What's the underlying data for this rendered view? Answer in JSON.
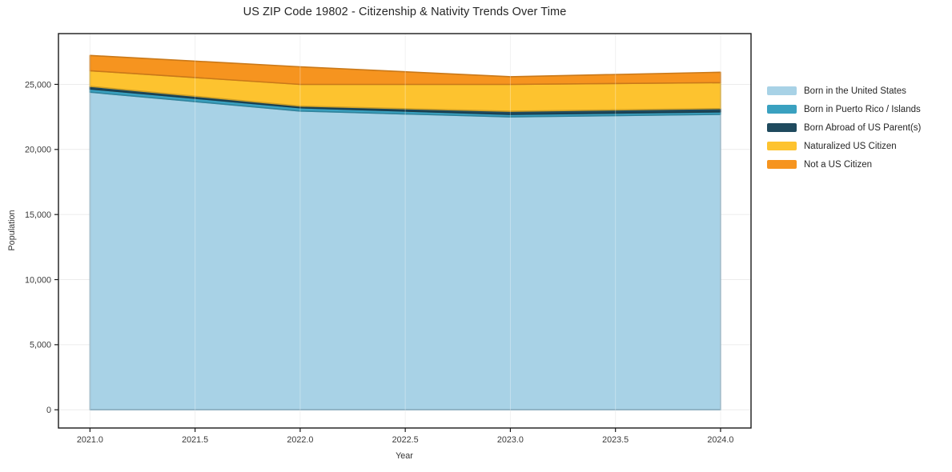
{
  "title": "US ZIP Code 19802 - Citizenship & Nativity Trends Over Time",
  "chart_data": {
    "type": "area",
    "stacked": true,
    "title": "US ZIP Code 19802 - Citizenship & Nativity Trends Over Time",
    "xlabel": "Year",
    "ylabel": "Population",
    "x": [
      2021,
      2022,
      2023,
      2024
    ],
    "series": [
      {
        "name": "Born in the United States",
        "color": "#a8d2e6",
        "values": [
          24400,
          22950,
          22500,
          22700
        ]
      },
      {
        "name": "Born in Puerto Rico / Islands",
        "color": "#3aa1c0",
        "values": [
          250,
          250,
          190,
          190
        ]
      },
      {
        "name": "Born Abroad of US Parent(s)",
        "color": "#1f4a5e",
        "values": [
          200,
          130,
          240,
          250
        ]
      },
      {
        "name": "Naturalized US Citizen",
        "color": "#fdc32f",
        "values": [
          1200,
          1670,
          2070,
          1990
        ]
      },
      {
        "name": "Not a US Citizen",
        "color": "#f6941f",
        "values": [
          1170,
          1350,
          590,
          800
        ]
      }
    ],
    "stack_totals": [
      27220,
      26350,
      25590,
      25930
    ],
    "xlim": [
      2020.85,
      2024.145
    ],
    "ylim": [
      -1400,
      28900
    ],
    "xticks": [
      2021.0,
      2021.5,
      2022.0,
      2022.5,
      2023.0,
      2023.5,
      2024.0
    ],
    "xtick_labels": [
      "2021.0",
      "2021.5",
      "2022.0",
      "2022.5",
      "2023.0",
      "2023.5",
      "2024.0"
    ],
    "yticks": [
      0,
      5000,
      10000,
      15000,
      20000,
      25000
    ],
    "ytick_labels": [
      "0",
      "5,000",
      "10,000",
      "15,000",
      "20,000",
      "25,000"
    ],
    "grid": true,
    "legend_position": "right"
  },
  "colors": {
    "background": "#ffffff",
    "grid": "#ececec",
    "grid_over_area": "rgba(255,255,255,0.32)",
    "axis": "#1a1a1a",
    "tick_label": "#3a3a3a",
    "title": "#262626"
  }
}
